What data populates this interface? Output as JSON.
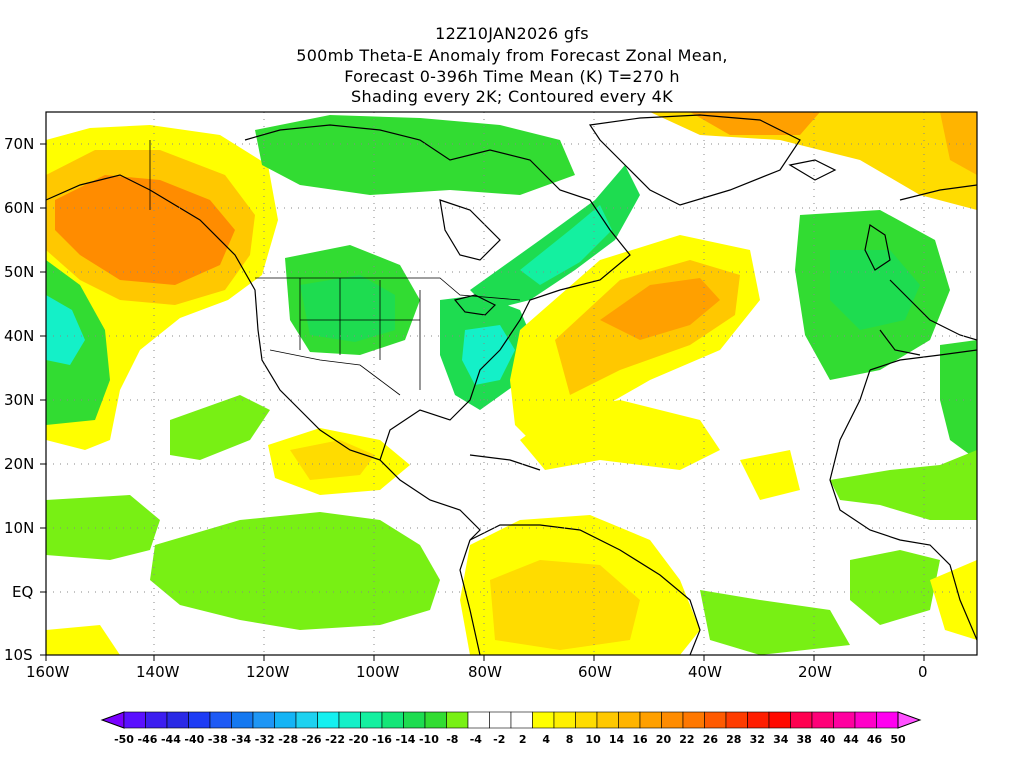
{
  "title_lines": [
    "12Z10JAN2026 gfs",
    "500mb Theta-E Anomaly from Forecast Zonal Mean,",
    "Forecast 0-396h Time Mean (K) T=270 h",
    "Shading every 2K; Contoured every 4K"
  ],
  "axes": {
    "lon_ticks": [
      "160W",
      "140W",
      "120W",
      "100W",
      "80W",
      "60W",
      "40W",
      "20W",
      "0"
    ],
    "lat_ticks": [
      "70N",
      "60N",
      "50N",
      "40N",
      "30N",
      "20N",
      "10N",
      "EQ",
      "10S"
    ],
    "lon_range": [
      -160,
      10
    ],
    "lat_range": [
      -10,
      75
    ],
    "grid": "dotted"
  },
  "colorbar": {
    "labels": [
      "-50",
      "-46",
      "-44",
      "-40",
      "-38",
      "-34",
      "-32",
      "-28",
      "-26",
      "-22",
      "-20",
      "-16",
      "-14",
      "-10",
      "-8",
      "-4",
      "-2",
      "2",
      "4",
      "8",
      "10",
      "14",
      "16",
      "20",
      "22",
      "26",
      "28",
      "32",
      "34",
      "38",
      "40",
      "44",
      "46",
      "50"
    ],
    "colors": [
      "#7a00ff",
      "#5a10ff",
      "#3c1ef0",
      "#2a2ae6",
      "#1e3cf5",
      "#1e5af5",
      "#1478f0",
      "#1e96f5",
      "#14b4f5",
      "#1ed2f0",
      "#14f0f0",
      "#14f0c8",
      "#14f0a0",
      "#14e678",
      "#1edc50",
      "#32dc32",
      "#78f014",
      "#ffffff",
      "#ffffff",
      "#ffffff",
      "#ffff00",
      "#fff000",
      "#ffdc00",
      "#ffc800",
      "#ffb400",
      "#ffa000",
      "#ff8c00",
      "#ff7800",
      "#ff5a00",
      "#ff3c00",
      "#ff1e00",
      "#ff0a00",
      "#ff0050",
      "#ff0078",
      "#ff00a0",
      "#ff00c8",
      "#ff00f0",
      "#ff50ff"
    ]
  },
  "anomaly_regions": [
    {
      "name": "Alaska warm anomaly",
      "sign": "positive",
      "color": "#ff8c00"
    },
    {
      "name": "NE Pacific cold anomaly",
      "sign": "negative",
      "color": "#14f0c8"
    },
    {
      "name": "Canada cold anomaly",
      "sign": "negative",
      "color": "#32dc32"
    },
    {
      "name": "Central US cold anomaly",
      "sign": "negative",
      "color": "#1edc50"
    },
    {
      "name": "SE US cold anomaly",
      "sign": "negative",
      "color": "#14f0a0"
    },
    {
      "name": "North Atlantic warm anomaly",
      "sign": "positive",
      "color": "#ffb400"
    },
    {
      "name": "Greenland warm anomaly",
      "sign": "positive",
      "color": "#ffc800"
    },
    {
      "name": "NE Atlantic cold anomaly",
      "sign": "negative",
      "color": "#32dc32"
    },
    {
      "name": "Tropical Pacific cold anomaly",
      "sign": "negative",
      "color": "#78f014"
    },
    {
      "name": "South America warm anomaly",
      "sign": "positive",
      "color": "#ffdc00"
    },
    {
      "name": "Africa warm anomaly",
      "sign": "positive",
      "color": "#ffff00"
    }
  ]
}
